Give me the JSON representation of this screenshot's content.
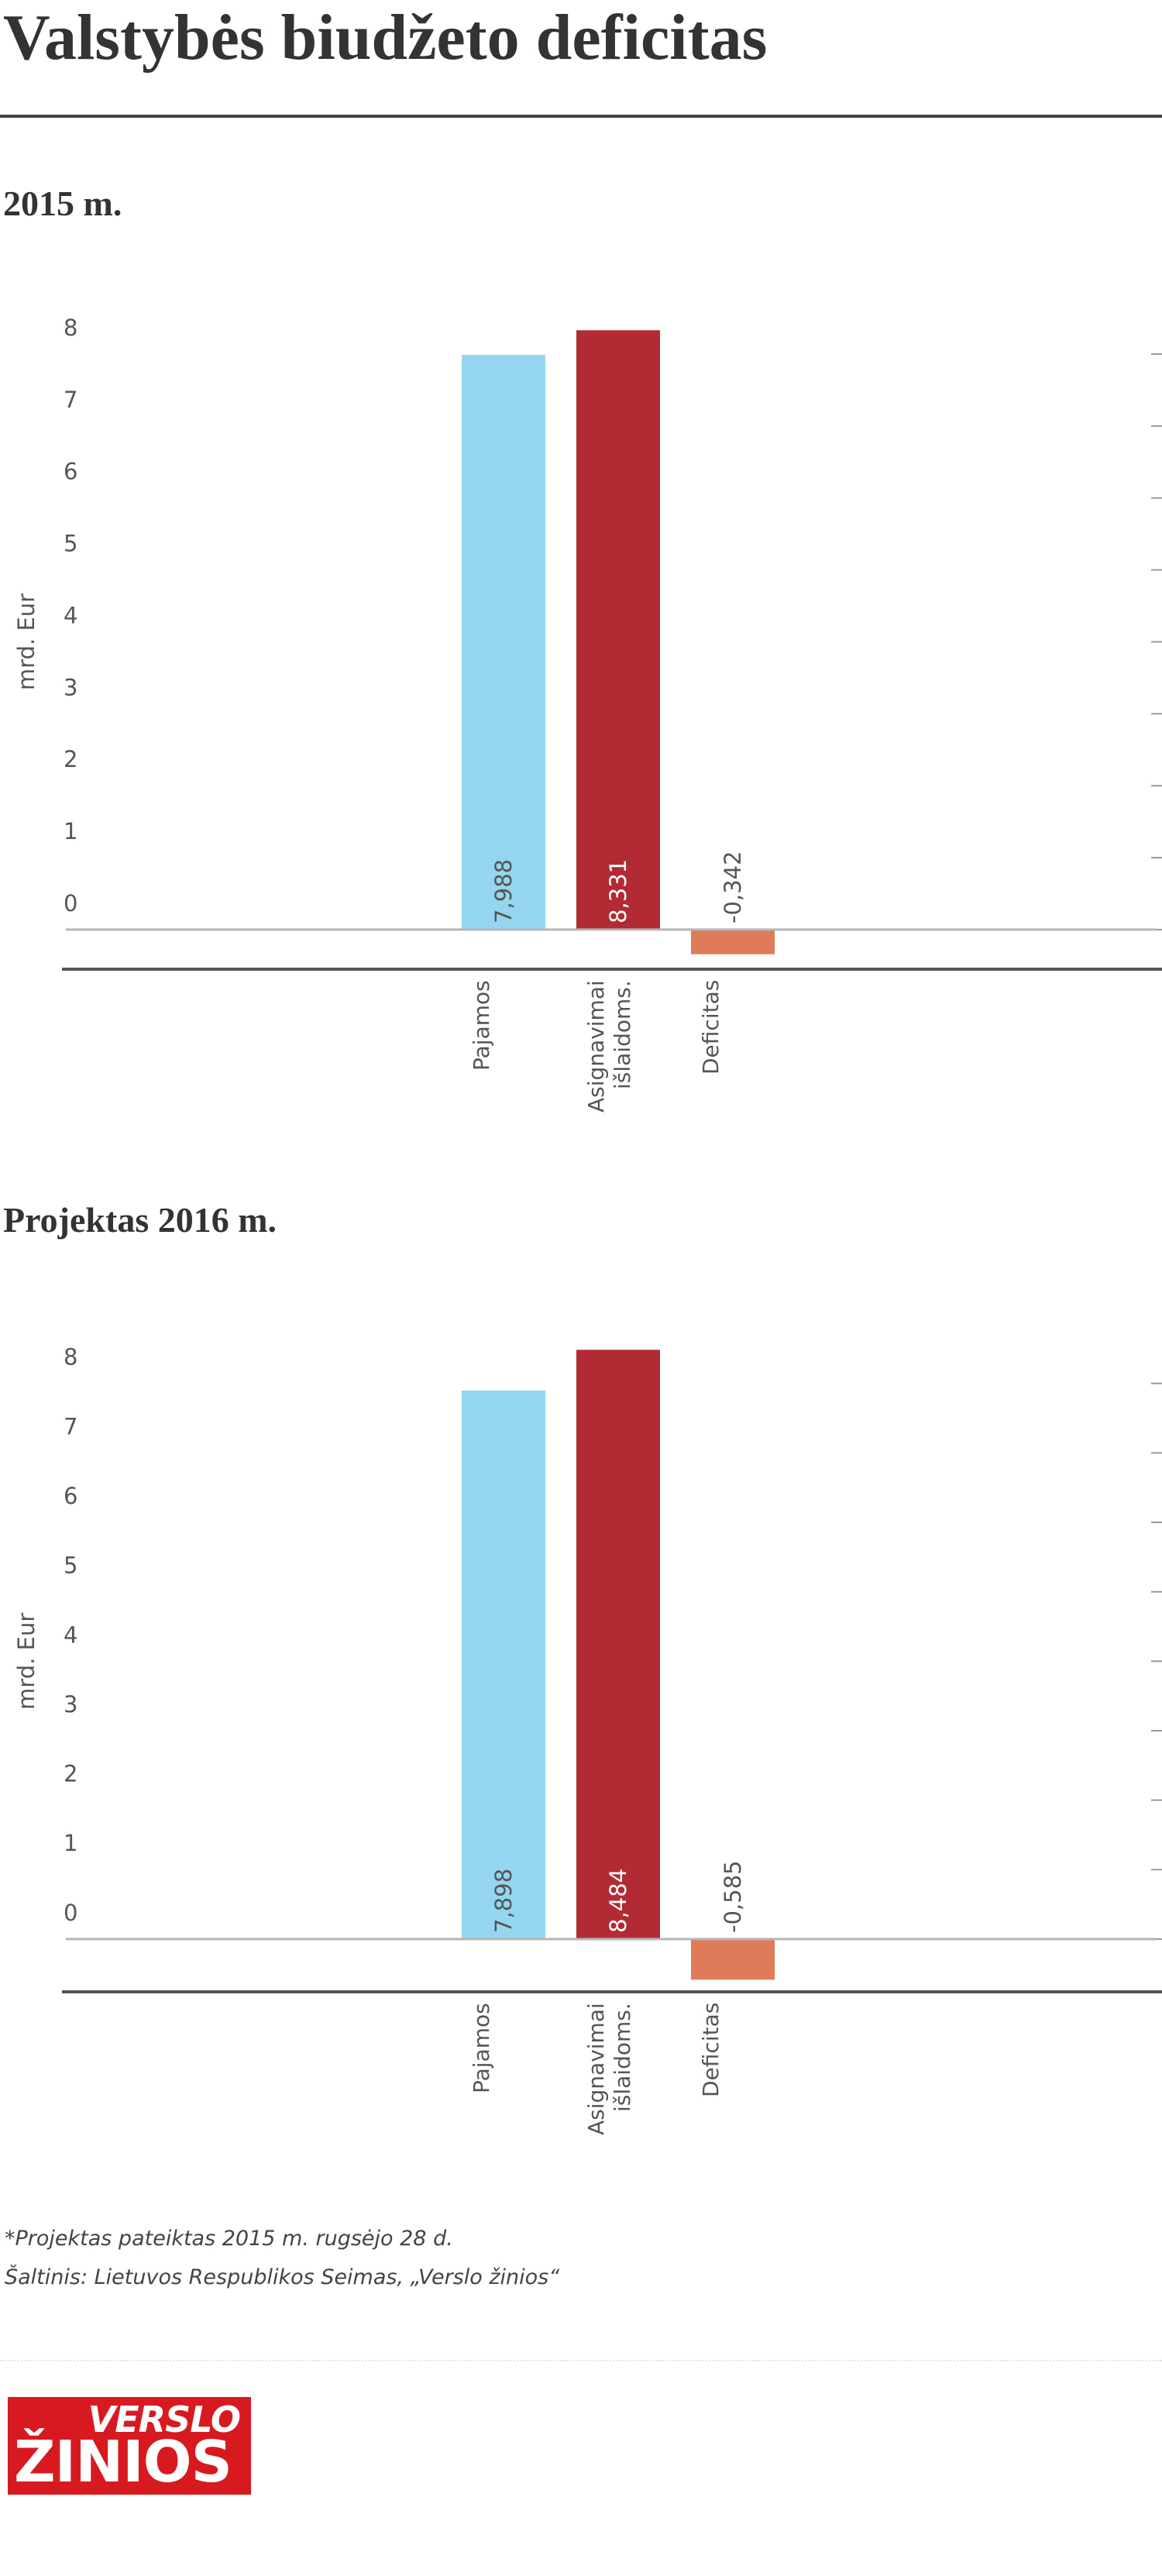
{
  "title": "Valstybės biudžeto deficitas",
  "chart_data": [
    {
      "type": "bar",
      "title": "2015 m.",
      "y_label": "mrd. Eur",
      "categories": [
        "Pajamos",
        "Asignavimai išlaidoms.",
        "Deficitas"
      ],
      "values": [
        7.988,
        8.331,
        -0.342
      ],
      "value_labels": [
        "7,988",
        "8,331",
        "-0,342"
      ],
      "colors": [
        "#94d6ef",
        "#b22a34",
        "#e07b5a"
      ],
      "ylim": [
        -0.55,
        8.7
      ],
      "yticks": [
        0,
        1,
        2,
        3,
        4,
        5,
        6,
        7,
        8
      ]
    },
    {
      "type": "bar",
      "title": "Projektas 2016 m.",
      "y_label": "mrd. Eur",
      "categories": [
        "Pajamos",
        "Asignavimai išlaidoms.",
        "Deficitas"
      ],
      "values": [
        7.898,
        8.484,
        -0.585
      ],
      "value_labels": [
        "7,898",
        "8,484",
        "-0,585"
      ],
      "colors": [
        "#94d6ef",
        "#b22a34",
        "#e07b5a"
      ],
      "ylim": [
        -0.76,
        8.9
      ],
      "yticks": [
        0,
        1,
        2,
        3,
        4,
        5,
        6,
        7,
        8
      ]
    }
  ],
  "notes": [
    "*Projektas pateiktas 2015 m. rugsėjo 28 d.",
    "Šaltinis: Lietuvos Respublikos Seimas, „Verslo žinios“"
  ],
  "logo": {
    "line1": "VERSLO",
    "line2": "ŽINIOS"
  }
}
